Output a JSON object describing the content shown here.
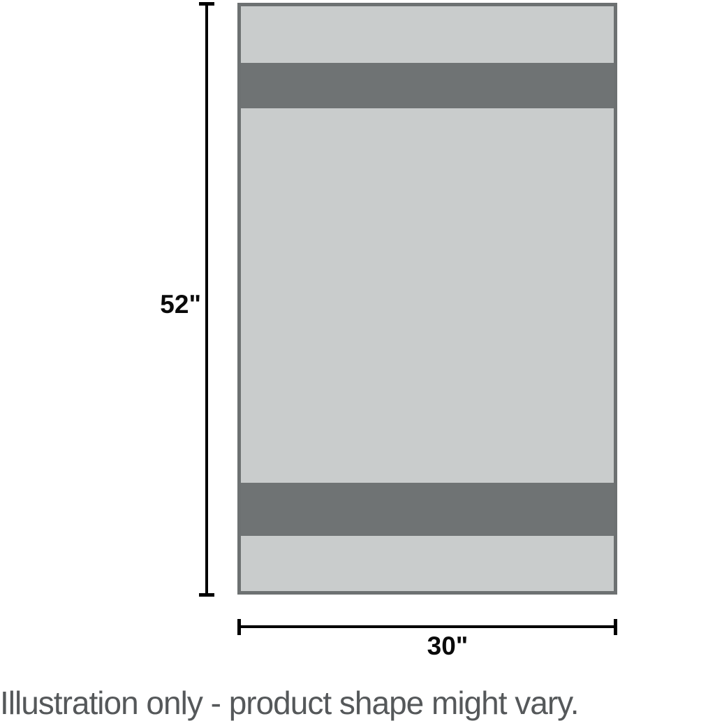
{
  "illustration": {
    "type": "product-dimension-diagram",
    "height_label": "52\"",
    "width_label": "30\"",
    "caption": "Illustration only - product shape might vary.",
    "colors": {
      "towel_fill": "#c9cccc",
      "band_fill": "#6f7374",
      "border": "#6d7172",
      "dimension_line": "#000000",
      "label_text": "#0a0a0a",
      "caption_text": "#55585a"
    }
  }
}
